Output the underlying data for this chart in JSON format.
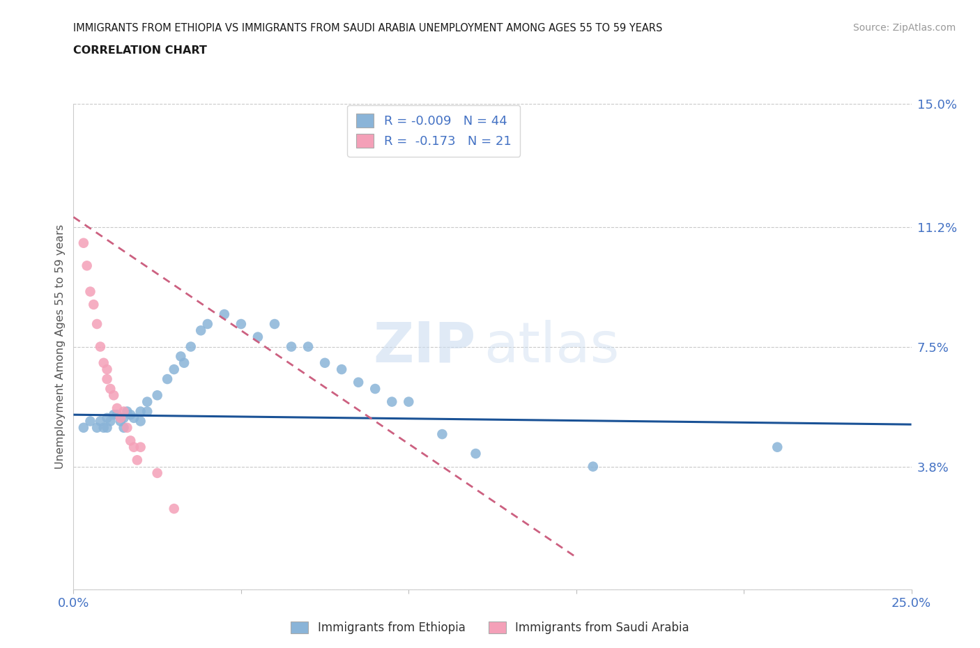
{
  "title_line1": "IMMIGRANTS FROM ETHIOPIA VS IMMIGRANTS FROM SAUDI ARABIA UNEMPLOYMENT AMONG AGES 55 TO 59 YEARS",
  "title_line2": "CORRELATION CHART",
  "source": "Source: ZipAtlas.com",
  "ylabel": "Unemployment Among Ages 55 to 59 years",
  "xlim": [
    0.0,
    0.25
  ],
  "ylim": [
    0.0,
    0.15
  ],
  "ytick_vals": [
    0.0,
    0.038,
    0.075,
    0.112,
    0.15
  ],
  "ytick_labels": [
    "",
    "3.8%",
    "7.5%",
    "11.2%",
    "15.0%"
  ],
  "xtick_vals": [
    0.0,
    0.05,
    0.1,
    0.15,
    0.2,
    0.25
  ],
  "xtick_labels": [
    "0.0%",
    "",
    "",
    "",
    "",
    "25.0%"
  ],
  "r_ethiopia": -0.009,
  "n_ethiopia": 44,
  "r_saudi": -0.173,
  "n_saudi": 21,
  "color_ethiopia": "#8ab4d8",
  "color_saudi": "#f4a0b8",
  "trend_color_ethiopia": "#1a5296",
  "trend_color_saudi": "#cc6080",
  "watermark_zip": "ZIP",
  "watermark_atlas": "atlas",
  "ethiopia_x": [
    0.003,
    0.005,
    0.007,
    0.008,
    0.009,
    0.01,
    0.01,
    0.011,
    0.012,
    0.013,
    0.014,
    0.015,
    0.015,
    0.016,
    0.017,
    0.018,
    0.02,
    0.02,
    0.022,
    0.022,
    0.025,
    0.028,
    0.03,
    0.032,
    0.033,
    0.035,
    0.038,
    0.04,
    0.045,
    0.05,
    0.055,
    0.06,
    0.065,
    0.07,
    0.075,
    0.08,
    0.085,
    0.09,
    0.095,
    0.1,
    0.11,
    0.12,
    0.155,
    0.21
  ],
  "ethiopia_y": [
    0.05,
    0.052,
    0.05,
    0.052,
    0.05,
    0.053,
    0.05,
    0.052,
    0.054,
    0.054,
    0.052,
    0.053,
    0.05,
    0.055,
    0.054,
    0.053,
    0.055,
    0.052,
    0.058,
    0.055,
    0.06,
    0.065,
    0.068,
    0.072,
    0.07,
    0.075,
    0.08,
    0.082,
    0.085,
    0.082,
    0.078,
    0.082,
    0.075,
    0.075,
    0.07,
    0.068,
    0.064,
    0.062,
    0.058,
    0.058,
    0.048,
    0.042,
    0.038,
    0.044
  ],
  "saudi_x": [
    0.003,
    0.004,
    0.005,
    0.006,
    0.007,
    0.008,
    0.009,
    0.01,
    0.01,
    0.011,
    0.012,
    0.013,
    0.014,
    0.015,
    0.016,
    0.017,
    0.018,
    0.019,
    0.02,
    0.025,
    0.03
  ],
  "saudi_y": [
    0.107,
    0.1,
    0.092,
    0.088,
    0.082,
    0.075,
    0.07,
    0.068,
    0.065,
    0.062,
    0.06,
    0.056,
    0.053,
    0.055,
    0.05,
    0.046,
    0.044,
    0.04,
    0.044,
    0.036,
    0.025
  ],
  "eth_trend_x": [
    0.0,
    0.25
  ],
  "eth_trend_y": [
    0.054,
    0.051
  ],
  "sau_trend_x": [
    0.0,
    0.15
  ],
  "sau_trend_y": [
    0.115,
    0.01
  ]
}
